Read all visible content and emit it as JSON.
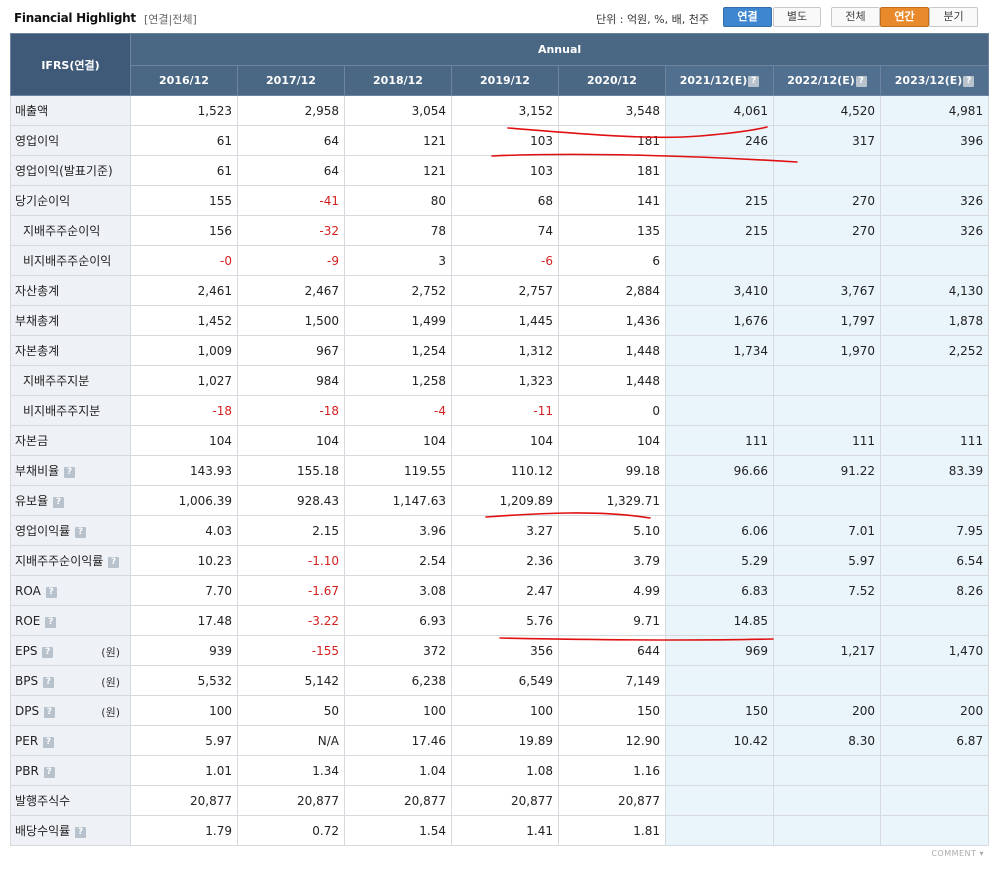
{
  "header": {
    "title": "Financial Highlight",
    "subtitle": "[연결|전체]",
    "unit": "단위 : 억원, %, 배, 천주",
    "btn_consolidated": "연결",
    "btn_separate": "별도",
    "btn_all": "전체",
    "btn_annual": "연간",
    "btn_quarter": "분기"
  },
  "table": {
    "corner": "IFRS(연결)",
    "annual": "Annual",
    "years": [
      "2016/12",
      "2017/12",
      "2018/12",
      "2019/12",
      "2020/12",
      "2021/12(E)",
      "2022/12(E)",
      "2023/12(E)"
    ],
    "info_glyph": "?",
    "unit_won": "(원)",
    "rows": [
      {
        "label": "매출액",
        "values": [
          "1,523",
          "2,958",
          "3,054",
          "3,152",
          "3,548",
          "4,061",
          "4,520",
          "4,981"
        ]
      },
      {
        "label": "영업이익",
        "values": [
          "61",
          "64",
          "121",
          "103",
          "181",
          "246",
          "317",
          "396"
        ]
      },
      {
        "label": "영업이익(발표기준)",
        "values": [
          "61",
          "64",
          "121",
          "103",
          "181",
          "",
          "",
          ""
        ]
      },
      {
        "label": "당기순이익",
        "values": [
          "155",
          "-41",
          "80",
          "68",
          "141",
          "215",
          "270",
          "326"
        ]
      },
      {
        "label": "지배주주순이익",
        "values": [
          "156",
          "-32",
          "78",
          "74",
          "135",
          "215",
          "270",
          "326"
        ]
      },
      {
        "label": "비지배주주순이익",
        "values": [
          "-0",
          "-9",
          "3",
          "-6",
          "6",
          "",
          "",
          ""
        ]
      },
      {
        "label": "자산총계",
        "values": [
          "2,461",
          "2,467",
          "2,752",
          "2,757",
          "2,884",
          "3,410",
          "3,767",
          "4,130"
        ]
      },
      {
        "label": "부채총계",
        "values": [
          "1,452",
          "1,500",
          "1,499",
          "1,445",
          "1,436",
          "1,676",
          "1,797",
          "1,878"
        ]
      },
      {
        "label": "자본총계",
        "values": [
          "1,009",
          "967",
          "1,254",
          "1,312",
          "1,448",
          "1,734",
          "1,970",
          "2,252"
        ]
      },
      {
        "label": "지배주주지분",
        "values": [
          "1,027",
          "984",
          "1,258",
          "1,323",
          "1,448",
          "",
          "",
          ""
        ]
      },
      {
        "label": "비지배주주지분",
        "values": [
          "-18",
          "-18",
          "-4",
          "-11",
          "0",
          "",
          "",
          ""
        ]
      },
      {
        "label": "자본금",
        "values": [
          "104",
          "104",
          "104",
          "104",
          "104",
          "111",
          "111",
          "111"
        ]
      },
      {
        "label": "부채비율",
        "values": [
          "143.93",
          "155.18",
          "119.55",
          "110.12",
          "99.18",
          "96.66",
          "91.22",
          "83.39"
        ]
      },
      {
        "label": "유보율",
        "values": [
          "1,006.39",
          "928.43",
          "1,147.63",
          "1,209.89",
          "1,329.71",
          "",
          "",
          ""
        ]
      },
      {
        "label": "영업이익률",
        "values": [
          "4.03",
          "2.15",
          "3.96",
          "3.27",
          "5.10",
          "6.06",
          "7.01",
          "7.95"
        ]
      },
      {
        "label": "지배주주순이익률",
        "values": [
          "10.23",
          "-1.10",
          "2.54",
          "2.36",
          "3.79",
          "5.29",
          "5.97",
          "6.54"
        ]
      },
      {
        "label": "ROA",
        "values": [
          "7.70",
          "-1.67",
          "3.08",
          "2.47",
          "4.99",
          "6.83",
          "7.52",
          "8.26"
        ]
      },
      {
        "label": "ROE",
        "values": [
          "17.48",
          "-3.22",
          "6.93",
          "5.76",
          "9.71",
          "14.85",
          "",
          ""
        ]
      },
      {
        "label": "EPS",
        "values": [
          "939",
          "-155",
          "372",
          "356",
          "644",
          "969",
          "1,217",
          "1,470"
        ]
      },
      {
        "label": "BPS",
        "values": [
          "5,532",
          "5,142",
          "6,238",
          "6,549",
          "7,149",
          "",
          "",
          ""
        ]
      },
      {
        "label": "DPS",
        "values": [
          "100",
          "50",
          "100",
          "100",
          "150",
          "150",
          "200",
          "200"
        ]
      },
      {
        "label": "PER",
        "values": [
          "5.97",
          "N/A",
          "17.46",
          "19.89",
          "12.90",
          "10.42",
          "8.30",
          "6.87"
        ]
      },
      {
        "label": "PBR",
        "values": [
          "1.01",
          "1.34",
          "1.04",
          "1.08",
          "1.16",
          "",
          "",
          ""
        ]
      },
      {
        "label": "발행주식수",
        "values": [
          "20,877",
          "20,877",
          "20,877",
          "20,877",
          "20,877",
          "",
          "",
          ""
        ]
      },
      {
        "label": "배당수익률",
        "values": [
          "1.79",
          "0.72",
          "1.54",
          "1.41",
          "1.81",
          "",
          "",
          ""
        ]
      }
    ]
  },
  "footer": {
    "comment": "COMMENT"
  },
  "colors": {
    "header_bg": "#4a6784",
    "estimate_bg": "#e9f4fb",
    "negative": "#d42020",
    "annotation": "#e01010",
    "active_blue": "#3f86d1",
    "active_orange": "#e88a2b"
  }
}
